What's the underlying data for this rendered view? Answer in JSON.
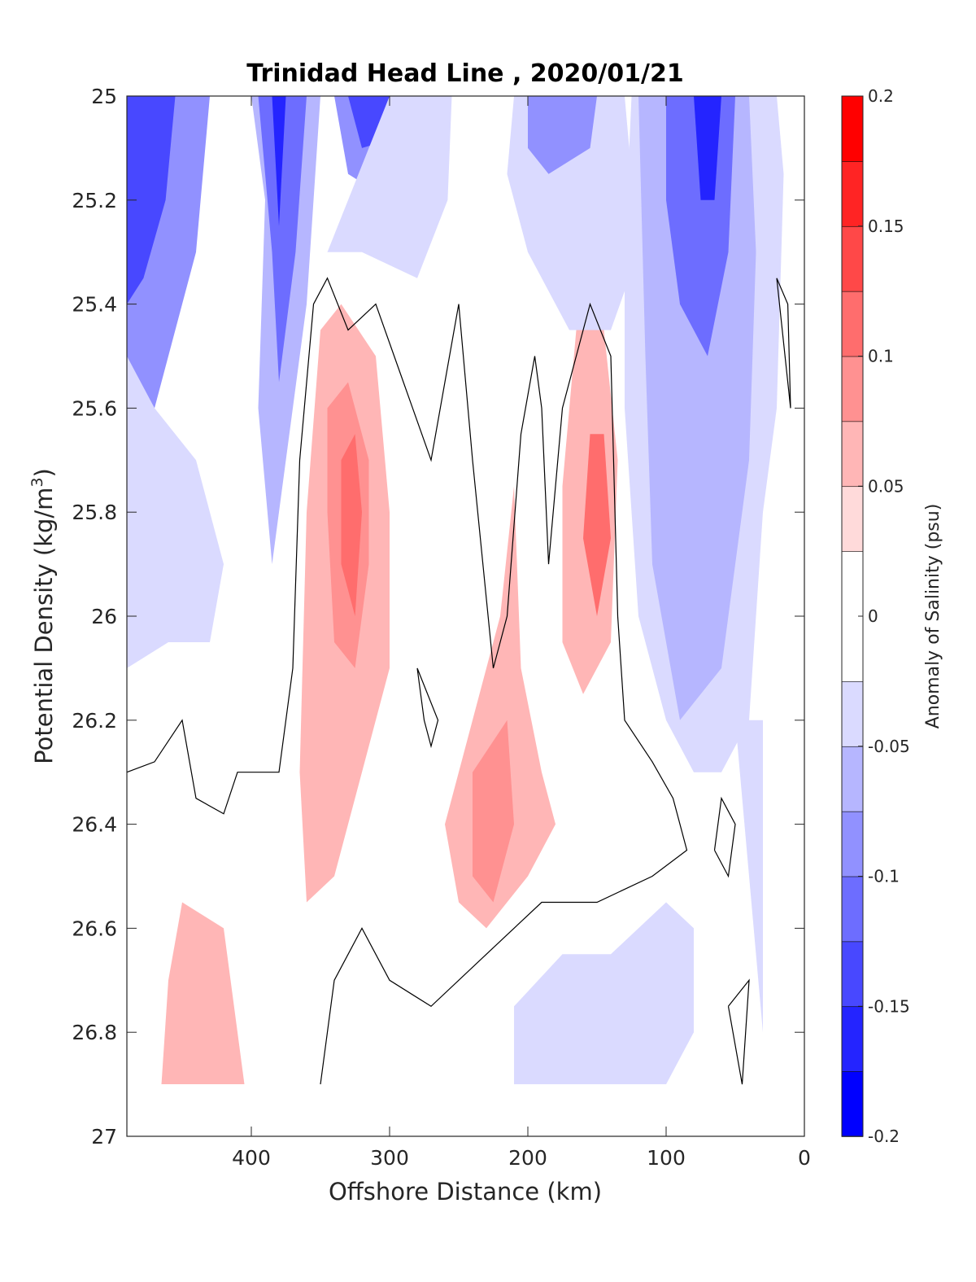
{
  "chart_data": {
    "type": "heatmap",
    "subtype": "filled-contour",
    "title": "Trinidad Head Line , 2020/01/21",
    "xlabel": "Offshore Distance (km)",
    "ylabel_main": "Potential Density (kg/m",
    "ylabel_sup": "3",
    "ylabel_close": ")",
    "xlim": [
      490,
      0
    ],
    "x_reversed": true,
    "ylim": [
      25,
      27
    ],
    "y_reversed": true,
    "xticks": [
      400,
      300,
      200,
      100,
      0
    ],
    "yticks": [
      25,
      25.2,
      25.4,
      25.6,
      25.8,
      26,
      26.2,
      26.4,
      26.6,
      26.8,
      27
    ],
    "colorbar": {
      "label": "Anomaly of Salinity (psu)",
      "range": [
        -0.2,
        0.2
      ],
      "ticks": [
        -0.2,
        -0.15,
        -0.1,
        -0.05,
        0,
        0.05,
        0.1,
        0.15,
        0.2
      ],
      "levels": [
        {
          "min": -0.2,
          "max": -0.175,
          "color": "#0000ff"
        },
        {
          "min": -0.175,
          "max": -0.15,
          "color": "#2424ff"
        },
        {
          "min": -0.15,
          "max": -0.125,
          "color": "#4848ff"
        },
        {
          "min": -0.125,
          "max": -0.1,
          "color": "#6d6dff"
        },
        {
          "min": -0.1,
          "max": -0.075,
          "color": "#9191ff"
        },
        {
          "min": -0.075,
          "max": -0.05,
          "color": "#b6b6ff"
        },
        {
          "min": -0.05,
          "max": -0.025,
          "color": "#dadaff"
        },
        {
          "min": -0.025,
          "max": 0.025,
          "color": "#ffffff"
        },
        {
          "min": 0.025,
          "max": 0.05,
          "color": "#ffdada"
        },
        {
          "min": 0.05,
          "max": 0.075,
          "color": "#ffb6b6"
        },
        {
          "min": 0.075,
          "max": 0.1,
          "color": "#ff9191"
        },
        {
          "min": 0.1,
          "max": 0.125,
          "color": "#ff6d6d"
        },
        {
          "min": 0.125,
          "max": 0.15,
          "color": "#ff4848"
        },
        {
          "min": 0.15,
          "max": 0.175,
          "color": "#ff2424"
        },
        {
          "min": 0.175,
          "max": 0.2,
          "color": "#ff0000"
        }
      ]
    },
    "data_extent": {
      "x_max": 490,
      "x_min": 10,
      "y_min": 25,
      "y_max": 26.9
    },
    "regions": [
      {
        "value": -0.1,
        "points": [
          [
            490,
            25
          ],
          [
            430,
            25
          ],
          [
            440,
            25.3
          ],
          [
            470,
            25.6
          ],
          [
            490,
            25.6
          ]
        ]
      },
      {
        "value": -0.15,
        "points": [
          [
            490,
            25
          ],
          [
            455,
            25
          ],
          [
            462,
            25.2
          ],
          [
            478,
            25.35
          ],
          [
            490,
            25.4
          ]
        ]
      },
      {
        "value": -0.05,
        "points": [
          [
            490,
            25.5
          ],
          [
            470,
            25.6
          ],
          [
            440,
            25.7
          ],
          [
            420,
            25.9
          ],
          [
            430,
            26.05
          ],
          [
            460,
            26.05
          ],
          [
            490,
            26.1
          ]
        ]
      },
      {
        "value": -0.075,
        "points": [
          [
            400,
            25
          ],
          [
            350,
            25
          ],
          [
            360,
            25.4
          ],
          [
            370,
            25.6
          ],
          [
            385,
            25.9
          ],
          [
            395,
            25.6
          ],
          [
            390,
            25.2
          ]
        ]
      },
      {
        "value": -0.125,
        "points": [
          [
            395,
            25
          ],
          [
            360,
            25
          ],
          [
            368,
            25.3
          ],
          [
            380,
            25.55
          ],
          [
            385,
            25.3
          ]
        ]
      },
      {
        "value": -0.175,
        "points": [
          [
            385,
            25
          ],
          [
            375,
            25
          ],
          [
            380,
            25.25
          ],
          [
            383,
            25.1
          ]
        ]
      },
      {
        "value": -0.1,
        "points": [
          [
            340,
            25
          ],
          [
            270,
            25
          ],
          [
            275,
            25.15
          ],
          [
            300,
            25.2
          ],
          [
            330,
            25.15
          ]
        ]
      },
      {
        "value": -0.15,
        "points": [
          [
            330,
            25
          ],
          [
            285,
            25
          ],
          [
            295,
            25.08
          ],
          [
            320,
            25.1
          ]
        ]
      },
      {
        "value": -0.05,
        "points": [
          [
            300,
            25
          ],
          [
            255,
            25
          ],
          [
            258,
            25.2
          ],
          [
            280,
            25.35
          ],
          [
            320,
            25.3
          ],
          [
            345,
            25.3
          ]
        ]
      },
      {
        "value": 0.05,
        "points": [
          [
            350,
            25.45
          ],
          [
            335,
            25.4
          ],
          [
            310,
            25.5
          ],
          [
            300,
            25.8
          ],
          [
            300,
            26.1
          ],
          [
            320,
            26.3
          ],
          [
            340,
            26.5
          ],
          [
            360,
            26.55
          ],
          [
            365,
            26.3
          ],
          [
            360,
            25.8
          ]
        ]
      },
      {
        "value": 0.075,
        "points": [
          [
            345,
            25.6
          ],
          [
            330,
            25.55
          ],
          [
            315,
            25.7
          ],
          [
            315,
            25.9
          ],
          [
            325,
            26.1
          ],
          [
            340,
            26.05
          ],
          [
            345,
            25.8
          ]
        ]
      },
      {
        "value": 0.1,
        "points": [
          [
            335,
            25.7
          ],
          [
            325,
            25.65
          ],
          [
            320,
            25.8
          ],
          [
            325,
            26.0
          ],
          [
            335,
            25.9
          ]
        ]
      },
      {
        "value": 0.05,
        "points": [
          [
            210,
            25.75
          ],
          [
            220,
            26.0
          ],
          [
            240,
            26.2
          ],
          [
            260,
            26.4
          ],
          [
            250,
            26.55
          ],
          [
            230,
            26.6
          ],
          [
            200,
            26.5
          ],
          [
            180,
            26.4
          ],
          [
            190,
            26.3
          ],
          [
            205,
            26.1
          ]
        ]
      },
      {
        "value": 0.075,
        "points": [
          [
            215,
            26.2
          ],
          [
            240,
            26.3
          ],
          [
            240,
            26.5
          ],
          [
            225,
            26.55
          ],
          [
            210,
            26.4
          ]
        ]
      },
      {
        "value": -0.05,
        "points": [
          [
            210,
            25
          ],
          [
            130,
            25
          ],
          [
            120,
            25.3
          ],
          [
            140,
            25.45
          ],
          [
            170,
            25.45
          ],
          [
            200,
            25.3
          ],
          [
            215,
            25.15
          ]
        ]
      },
      {
        "value": -0.1,
        "points": [
          [
            200,
            25
          ],
          [
            150,
            25
          ],
          [
            155,
            25.1
          ],
          [
            185,
            25.15
          ],
          [
            200,
            25.1
          ]
        ]
      },
      {
        "value": 0.05,
        "points": [
          [
            165,
            25.45
          ],
          [
            145,
            25.45
          ],
          [
            135,
            25.7
          ],
          [
            140,
            26.05
          ],
          [
            160,
            26.15
          ],
          [
            175,
            26.05
          ],
          [
            175,
            25.75
          ]
        ]
      },
      {
        "value": 0.1,
        "points": [
          [
            155,
            25.65
          ],
          [
            145,
            25.65
          ],
          [
            140,
            25.85
          ],
          [
            150,
            26.0
          ],
          [
            160,
            25.85
          ]
        ]
      },
      {
        "value": -0.05,
        "points": [
          [
            125,
            25
          ],
          [
            20,
            25
          ],
          [
            15,
            25.15
          ],
          [
            20,
            25.6
          ],
          [
            30,
            25.8
          ],
          [
            40,
            26.2
          ],
          [
            60,
            26.3
          ],
          [
            80,
            26.3
          ],
          [
            100,
            26.2
          ],
          [
            120,
            26.0
          ],
          [
            130,
            25.6
          ],
          [
            130,
            25.3
          ]
        ]
      },
      {
        "value": -0.075,
        "points": [
          [
            120,
            25
          ],
          [
            40,
            25
          ],
          [
            35,
            25.3
          ],
          [
            40,
            25.7
          ],
          [
            60,
            26.1
          ],
          [
            90,
            26.2
          ],
          [
            110,
            25.9
          ],
          [
            115,
            25.5
          ]
        ]
      },
      {
        "value": -0.125,
        "points": [
          [
            100,
            25
          ],
          [
            50,
            25
          ],
          [
            55,
            25.3
          ],
          [
            70,
            25.5
          ],
          [
            90,
            25.4
          ],
          [
            100,
            25.2
          ]
        ]
      },
      {
        "value": -0.175,
        "points": [
          [
            80,
            25
          ],
          [
            60,
            25
          ],
          [
            65,
            25.2
          ],
          [
            75,
            25.2
          ]
        ]
      },
      {
        "value": -0.05,
        "points": [
          [
            140,
            26.65
          ],
          [
            175,
            26.65
          ],
          [
            210,
            26.75
          ],
          [
            210,
            26.9
          ],
          [
            100,
            26.9
          ],
          [
            80,
            26.8
          ],
          [
            80,
            26.6
          ],
          [
            100,
            26.55
          ]
        ]
      },
      {
        "value": 0.05,
        "points": [
          [
            450,
            26.55
          ],
          [
            420,
            26.6
          ],
          [
            405,
            26.9
          ],
          [
            465,
            26.9
          ],
          [
            460,
            26.7
          ]
        ]
      },
      {
        "value": -0.05,
        "points": [
          [
            50,
            26.2
          ],
          [
            30,
            26.2
          ],
          [
            30,
            26.8
          ],
          [
            40,
            26.5
          ]
        ]
      }
    ],
    "contour_zero": [
      {
        "points": [
          [
            490,
            26.3
          ],
          [
            470,
            26.28
          ],
          [
            450,
            26.2
          ],
          [
            440,
            26.35
          ],
          [
            420,
            26.38
          ],
          [
            410,
            26.3
          ],
          [
            380,
            26.3
          ],
          [
            370,
            26.1
          ],
          [
            365,
            25.7
          ],
          [
            355,
            25.4
          ],
          [
            345,
            25.35
          ],
          [
            330,
            25.45
          ],
          [
            310,
            25.4
          ],
          [
            290,
            25.55
          ],
          [
            270,
            25.7
          ],
          [
            250,
            25.4
          ],
          [
            240,
            25.7
          ],
          [
            225,
            26.1
          ],
          [
            215,
            26.0
          ],
          [
            205,
            25.65
          ],
          [
            195,
            25.5
          ],
          [
            190,
            25.6
          ],
          [
            185,
            25.9
          ],
          [
            175,
            25.6
          ],
          [
            155,
            25.4
          ],
          [
            140,
            25.5
          ],
          [
            135,
            26.0
          ],
          [
            130,
            26.2
          ],
          [
            110,
            26.28
          ],
          [
            95,
            26.35
          ],
          [
            85,
            26.45
          ],
          [
            110,
            26.5
          ],
          [
            150,
            26.55
          ],
          [
            190,
            26.55
          ],
          [
            230,
            26.65
          ],
          [
            270,
            26.75
          ],
          [
            300,
            26.7
          ],
          [
            320,
            26.6
          ],
          [
            340,
            26.7
          ],
          [
            350,
            26.9
          ]
        ]
      },
      {
        "points": [
          [
            280,
            26.1
          ],
          [
            275,
            26.2
          ],
          [
            270,
            26.25
          ],
          [
            265,
            26.2
          ],
          [
            280,
            26.1
          ]
        ]
      },
      {
        "points": [
          [
            65,
            26.45
          ],
          [
            55,
            26.5
          ],
          [
            50,
            26.4
          ],
          [
            60,
            26.35
          ],
          [
            65,
            26.45
          ]
        ]
      },
      {
        "points": [
          [
            55,
            26.75
          ],
          [
            45,
            26.9
          ],
          [
            40,
            26.7
          ],
          [
            55,
            26.75
          ]
        ]
      },
      {
        "points": [
          [
            20,
            25.35
          ],
          [
            12,
            25.4
          ],
          [
            10,
            25.6
          ],
          [
            20,
            25.35
          ]
        ]
      }
    ]
  }
}
